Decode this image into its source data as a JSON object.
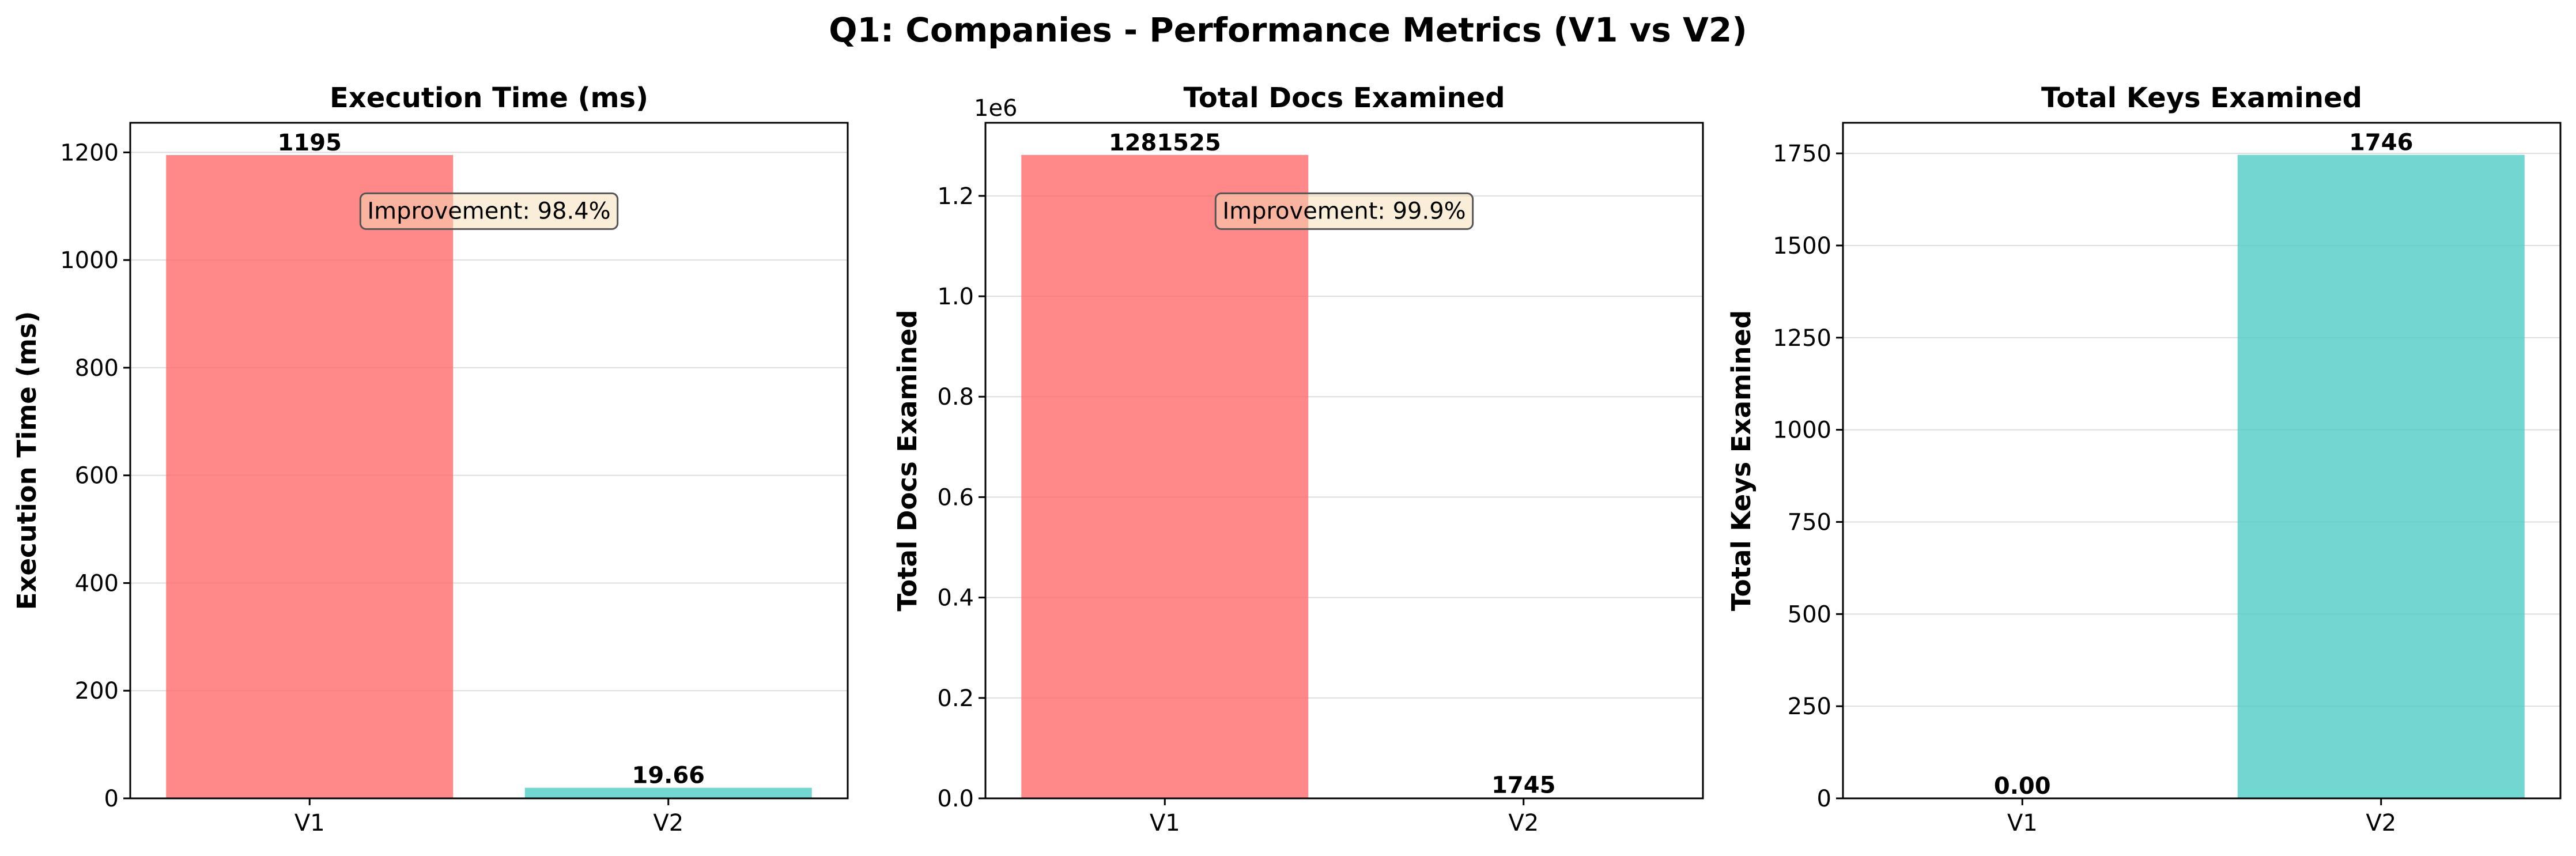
{
  "figure_title": "Q1: Companies - Performance Metrics (V1 vs V2)",
  "colors": {
    "v1": "#FF6B6B",
    "v2": "#4ECDC4",
    "annotation_bg": "#F5DEB3",
    "grid": "#dddddd"
  },
  "chart_data": [
    {
      "type": "bar",
      "title": "Execution Time (ms)",
      "ylabel": "Execution Time (ms)",
      "categories": [
        "V1",
        "V2"
      ],
      "values": [
        1195,
        19.66
      ],
      "value_labels": [
        "1195",
        "19.66"
      ],
      "ylim": [
        0,
        1255
      ],
      "yticks": [
        0,
        200,
        400,
        600,
        800,
        1000,
        1200
      ],
      "ytick_labels": [
        "0",
        "200",
        "400",
        "600",
        "800",
        "1000",
        "1200"
      ],
      "offset_label": "",
      "annotation": "Improvement: 98.4%",
      "grid": true
    },
    {
      "type": "bar",
      "title": "Total Docs Examined",
      "ylabel": "Total Docs Examined",
      "categories": [
        "V1",
        "V2"
      ],
      "values": [
        1281525,
        1745
      ],
      "value_labels": [
        "1281525",
        "1745"
      ],
      "ylim": [
        0,
        1345600
      ],
      "yticks": [
        0,
        200000,
        400000,
        600000,
        800000,
        1000000,
        1200000
      ],
      "ytick_labels": [
        "0.0",
        "0.2",
        "0.4",
        "0.6",
        "0.8",
        "1.0",
        "1.2"
      ],
      "offset_label": "1e6",
      "annotation": "Improvement: 99.9%",
      "grid": true
    },
    {
      "type": "bar",
      "title": "Total Keys Examined",
      "ylabel": "Total Keys Examined",
      "categories": [
        "V1",
        "V2"
      ],
      "values": [
        0,
        1746
      ],
      "value_labels": [
        "0.00",
        "1746"
      ],
      "ylim": [
        0,
        1833
      ],
      "yticks": [
        0,
        250,
        500,
        750,
        1000,
        1250,
        1500,
        1750
      ],
      "ytick_labels": [
        "0",
        "250",
        "500",
        "750",
        "1000",
        "1250",
        "1500",
        "1750"
      ],
      "offset_label": "",
      "annotation": "",
      "grid": true
    }
  ]
}
